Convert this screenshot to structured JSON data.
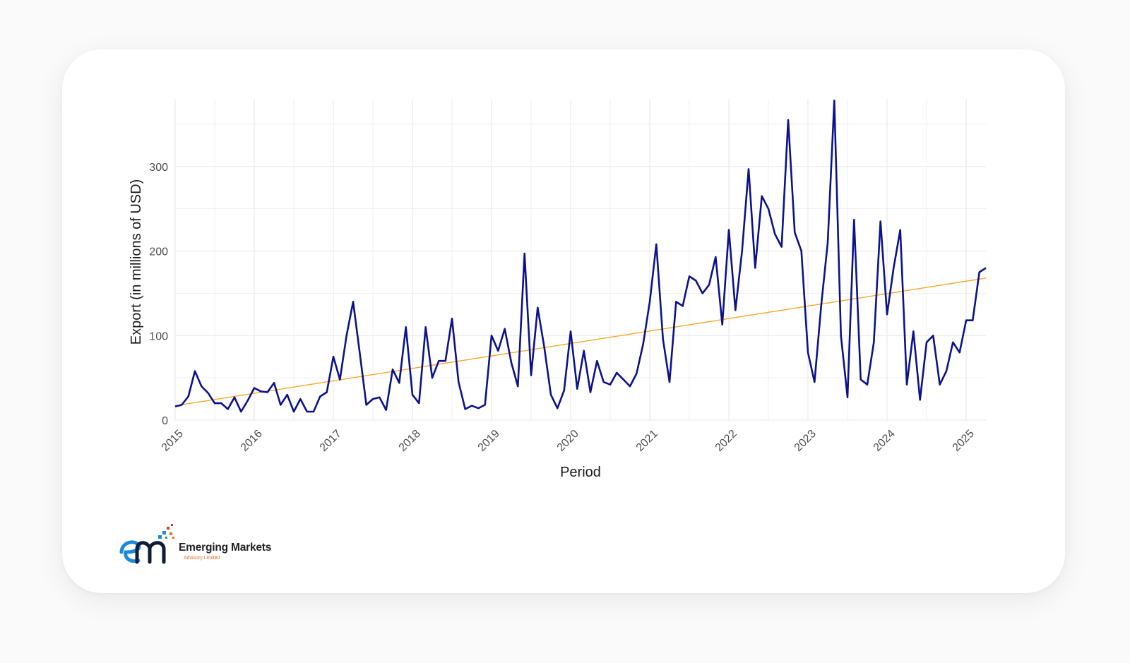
{
  "brand": {
    "name": "Emerging Markets",
    "subtitle": "Advisory Limited",
    "colors": {
      "blue": "#1a8ad8",
      "navy": "#101a3a",
      "orange": "#e8682a",
      "red": "#d93a2a"
    }
  },
  "chart_data": {
    "type": "line",
    "title": "",
    "xlabel": "Period",
    "ylabel": "Export (in millions of USD)",
    "xlim": [
      2015.0,
      2025.25
    ],
    "ylim": [
      0,
      380
    ],
    "xticks": [
      2015,
      2016,
      2017,
      2018,
      2019,
      2020,
      2021,
      2022,
      2023,
      2024,
      2025
    ],
    "xtick_labels": [
      "2015",
      "2016",
      "2017",
      "2018",
      "2019",
      "2020",
      "2021",
      "2022",
      "2023",
      "2024",
      "2025"
    ],
    "yticks": [
      0,
      100,
      200,
      300
    ],
    "ytick_labels": [
      "0",
      "100",
      "200",
      "300"
    ],
    "grid": true,
    "colors": {
      "series": "#0b128c",
      "trend": "#f5a623",
      "grid": "#ebebeb"
    },
    "series": [
      {
        "name": "Export",
        "start": 2015.0,
        "step_months": 1,
        "values": [
          16,
          18,
          28,
          58,
          40,
          32,
          20,
          20,
          13,
          27,
          10,
          23,
          38,
          34,
          33,
          44,
          18,
          30,
          10,
          25,
          10,
          10,
          28,
          33,
          75,
          48,
          100,
          140,
          80,
          18,
          25,
          27,
          12,
          60,
          44,
          110,
          30,
          20,
          110,
          50,
          70,
          70,
          120,
          45,
          13,
          17,
          14,
          18,
          100,
          82,
          108,
          68,
          40,
          197,
          53,
          133,
          86,
          30,
          14,
          35,
          105,
          37,
          82,
          33,
          70,
          45,
          42,
          56,
          48,
          40,
          55,
          90,
          140,
          208,
          96,
          45,
          140,
          135,
          170,
          165,
          150,
          160,
          193,
          113,
          225,
          130,
          200,
          297,
          180,
          265,
          250,
          220,
          205,
          355,
          222,
          200,
          80,
          45,
          135,
          210,
          378,
          100,
          27,
          237,
          48,
          42,
          92,
          235,
          125,
          180,
          225,
          42,
          105,
          24,
          92,
          100,
          42,
          58,
          92,
          80,
          118,
          118,
          175,
          180
        ]
      },
      {
        "name": "Trend",
        "kind": "linear",
        "x": [
          2015.0,
          2025.25
        ],
        "values": [
          17,
          168
        ]
      }
    ]
  }
}
